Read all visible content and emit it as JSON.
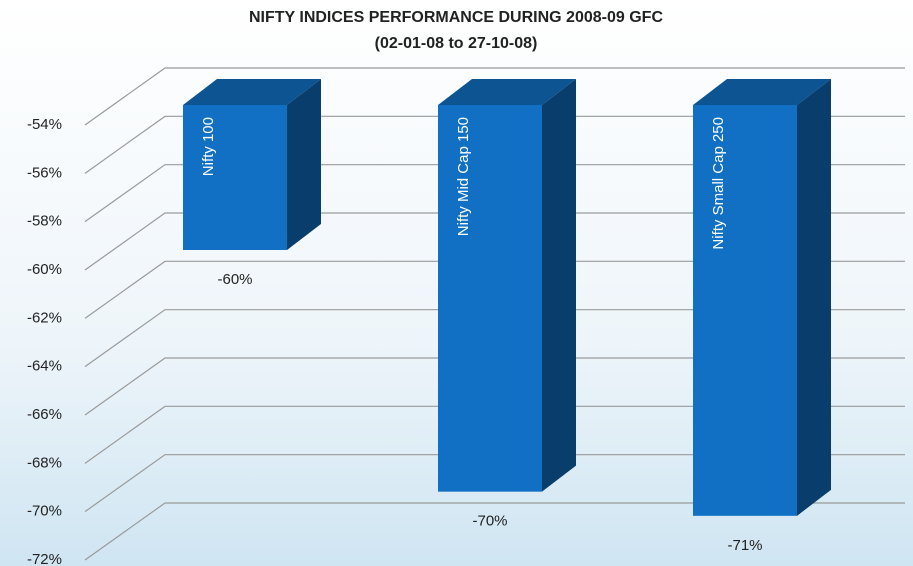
{
  "chart_data": {
    "type": "bar",
    "title": "NIFTY INDICES PERFORMANCE DURING 2008-09 GFC",
    "subtitle": "(02-01-08 to 27-10-08)",
    "categories": [
      "Nifty 100",
      "Nifty Mid Cap 150",
      "Nifty Small Cap 250"
    ],
    "values": [
      -60,
      -70,
      -71
    ],
    "value_labels": [
      "-60%",
      "-70%",
      "-71%"
    ],
    "color": "#1170c4",
    "ylim": [
      -54,
      -72
    ],
    "yticks": [
      {
        "value": -54,
        "label": "-54%"
      },
      {
        "value": -56,
        "label": "-56%"
      },
      {
        "value": -58,
        "label": "-58%"
      },
      {
        "value": -60,
        "label": "-60%"
      },
      {
        "value": -62,
        "label": "-62%"
      },
      {
        "value": -64,
        "label": "-64%"
      },
      {
        "value": -66,
        "label": "-66%"
      },
      {
        "value": -68,
        "label": "-68%"
      },
      {
        "value": -70,
        "label": "-70%"
      },
      {
        "value": -72,
        "label": "-72%"
      }
    ],
    "grid": true
  }
}
